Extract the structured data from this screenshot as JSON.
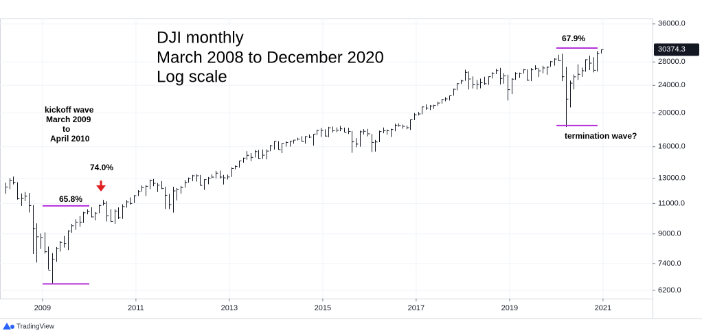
{
  "chart_data": {
    "type": "hlc",
    "title_lines": [
      "DJI monthly",
      "March 2008 to December 2020",
      "Log scale"
    ],
    "annotations": [
      "kickoff wave",
      "March 2009",
      "to",
      "April 2010",
      "65.8%",
      "74.0%",
      "67.9%",
      "termination wave?"
    ],
    "levels": [
      6470,
      10830,
      30700,
      18400
    ],
    "last_price": 30374.3,
    "log_scale": true,
    "grid": true,
    "color": "#131722",
    "level_color": "#b42fd8",
    "x": [
      "2008-03",
      "2008-04",
      "2008-05",
      "2008-06",
      "2008-07",
      "2008-08",
      "2008-09",
      "2008-10",
      "2008-11",
      "2008-12",
      "2009-01",
      "2009-02",
      "2009-03",
      "2009-04",
      "2009-05",
      "2009-06",
      "2009-07",
      "2009-08",
      "2009-09",
      "2009-10",
      "2009-11",
      "2009-12",
      "2010-01",
      "2010-02",
      "2010-03",
      "2010-04",
      "2010-05",
      "2010-06",
      "2010-07",
      "2010-08",
      "2010-09",
      "2010-10",
      "2010-11",
      "2010-12",
      "2011-01",
      "2011-02",
      "2011-03",
      "2011-04",
      "2011-05",
      "2011-06",
      "2011-07",
      "2011-08",
      "2011-09",
      "2011-10",
      "2011-11",
      "2011-12",
      "2012-01",
      "2012-02",
      "2012-03",
      "2012-04",
      "2012-05",
      "2012-06",
      "2012-07",
      "2012-08",
      "2012-09",
      "2012-10",
      "2012-11",
      "2012-12",
      "2013-01",
      "2013-02",
      "2013-03",
      "2013-04",
      "2013-05",
      "2013-06",
      "2013-07",
      "2013-08",
      "2013-09",
      "2013-10",
      "2013-11",
      "2013-12",
      "2014-01",
      "2014-02",
      "2014-03",
      "2014-04",
      "2014-05",
      "2014-06",
      "2014-07",
      "2014-08",
      "2014-09",
      "2014-10",
      "2014-11",
      "2014-12",
      "2015-01",
      "2015-02",
      "2015-03",
      "2015-04",
      "2015-05",
      "2015-06",
      "2015-07",
      "2015-08",
      "2015-09",
      "2015-10",
      "2015-11",
      "2015-12",
      "2016-01",
      "2016-02",
      "2016-03",
      "2016-04",
      "2016-05",
      "2016-06",
      "2016-07",
      "2016-08",
      "2016-09",
      "2016-10",
      "2016-11",
      "2016-12",
      "2017-01",
      "2017-02",
      "2017-03",
      "2017-04",
      "2017-05",
      "2017-06",
      "2017-07",
      "2017-08",
      "2017-09",
      "2017-10",
      "2017-11",
      "2017-12",
      "2018-01",
      "2018-02",
      "2018-03",
      "2018-04",
      "2018-05",
      "2018-06",
      "2018-07",
      "2018-08",
      "2018-09",
      "2018-10",
      "2018-11",
      "2018-12",
      "2019-01",
      "2019-02",
      "2019-03",
      "2019-04",
      "2019-05",
      "2019-06",
      "2019-07",
      "2019-08",
      "2019-09",
      "2019-10",
      "2019-11",
      "2019-12",
      "2020-01",
      "2020-02",
      "2020-03",
      "2020-04",
      "2020-05",
      "2020-06",
      "2020-07",
      "2020-08",
      "2020-09",
      "2020-10",
      "2020-11",
      "2020-12"
    ],
    "high": [
      12622,
      13010,
      13136,
      12657,
      11750,
      11867,
      11790,
      10882,
      9654,
      9026,
      9088,
      8280,
      7924,
      8258,
      8588,
      8877,
      9214,
      9620,
      9917,
      10119,
      10406,
      10580,
      10729,
      10404,
      10907,
      11258,
      11157,
      10595,
      10581,
      10720,
      10948,
      11246,
      11451,
      11625,
      12020,
      12391,
      12419,
      12876,
      12929,
      12600,
      12753,
      12284,
      11717,
      12284,
      12187,
      12360,
      12842,
      13055,
      13289,
      13338,
      13279,
      12898,
      13103,
      13330,
      13653,
      13661,
      13290,
      13307,
      13969,
      14150,
      14585,
      14888,
      15542,
      15340,
      15658,
      15658,
      15710,
      15721,
      16174,
      16588,
      16588,
      16398,
      16589,
      16631,
      16736,
      16978,
      17151,
      17153,
      17350,
      17395,
      17895,
      18103,
      17951,
      18244,
      18288,
      18175,
      18351,
      18150,
      18137,
      17750,
      16933,
      17800,
      17977,
      17997,
      17405,
      16740,
      17790,
      18167,
      17935,
      18017,
      18622,
      18668,
      18534,
      18399,
      19152,
      19987,
      20126,
      20851,
      21169,
      21070,
      21113,
      21535,
      21929,
      22179,
      22420,
      23485,
      24327,
      24876,
      26617,
      26307,
      25449,
      24858,
      25087,
      25403,
      25462,
      26168,
      26770,
      26952,
      25980,
      25750,
      25140,
      26156,
      26110,
      26696,
      26667,
      26908,
      27399,
      26878,
      27307,
      27183,
      28175,
      28702,
      29374,
      29568,
      27102,
      24765,
      25759,
      27580,
      26991,
      28502,
      29199,
      28902,
      30118,
      30400
    ],
    "low": [
      11731,
      12102,
      12480,
      11287,
      10827,
      11175,
      10365,
      7882,
      7449,
      8149,
      7909,
      7114,
      6470,
      7487,
      8012,
      8221,
      8087,
      9065,
      9253,
      9430,
      9678,
      10236,
      10030,
      9835,
      10320,
      10856,
      9774,
      9741,
      9614,
      9936,
      9940,
      10704,
      10929,
      11036,
      11555,
      11894,
      11555,
      12093,
      12332,
      11863,
      12093,
      10604,
      10597,
      10362,
      11231,
      11735,
      12217,
      12627,
      12747,
      12710,
      12391,
      12035,
      12492,
      12994,
      12978,
      12970,
      12471,
      12883,
      13104,
      13784,
      13937,
      14398,
      14688,
      14551,
      14910,
      14760,
      14760,
      14720,
      15532,
      15703,
      15699,
      15340,
      16015,
      16015,
      16334,
      16682,
      16563,
      16333,
      16945,
      16118,
      17276,
      17068,
      17138,
      17038,
      17585,
      17603,
      17723,
      17596,
      17399,
      15370,
      15942,
      16013,
      17353,
      17138,
      15451,
      15504,
      16498,
      17484,
      17331,
      17063,
      17713,
      18266,
      18022,
      17959,
      17884,
      19069,
      19677,
      19831,
      20413,
      20379,
      20554,
      20994,
      21279,
      21600,
      21709,
      22416,
      23242,
      24242,
      24741,
      23360,
      23509,
      23344,
      23531,
      24078,
      24077,
      25124,
      25836,
      24123,
      24268,
      21713,
      22639,
      24883,
      25208,
      25944,
      24780,
      24680,
      26559,
      25339,
      25979,
      25743,
      27125,
      27326,
      28170,
      24681,
      18214,
      20735,
      23361,
      24844,
      25391,
      26248,
      26537,
      26143,
      26277,
      29640
    ],
    "close": [
      12263,
      12820,
      12638,
      11350,
      11378,
      11544,
      10851,
      9325,
      8829,
      8776,
      8001,
      7063,
      7609,
      8168,
      8500,
      8447,
      9172,
      9496,
      9712,
      9713,
      10345,
      10428,
      10067,
      10325,
      10857,
      11009,
      10137,
      9774,
      10466,
      10015,
      10788,
      11118,
      11006,
      11578,
      11892,
      12226,
      12320,
      12811,
      12570,
      12414,
      12143,
      11614,
      10913,
      11955,
      12046,
      12218,
      12633,
      12952,
      13212,
      13214,
      12393,
      12880,
      13009,
      13091,
      13437,
      13096,
      13026,
      13104,
      13861,
      14054,
      14579,
      14840,
      15116,
      14910,
      15500,
      14810,
      15130,
      15546,
      16086,
      16577,
      15699,
      16322,
      16458,
      16581,
      16717,
      16827,
      16563,
      17098,
      17043,
      17391,
      17828,
      17823,
      17165,
      18133,
      17776,
      17841,
      18011,
      17620,
      17690,
      16528,
      16285,
      17664,
      17720,
      17425,
      16466,
      16517,
      17685,
      17774,
      17787,
      17930,
      18432,
      18401,
      18308,
      18142,
      19124,
      19763,
      19864,
      20812,
      20663,
      20940,
      21009,
      21350,
      21891,
      21948,
      22405,
      23377,
      24272,
      24719,
      26149,
      25029,
      24103,
      24163,
      24416,
      24271,
      25415,
      25965,
      26458,
      25116,
      25538,
      23327,
      24999,
      25916,
      25929,
      26593,
      24815,
      26600,
      26864,
      26403,
      26917,
      27046,
      28051,
      28538,
      28256,
      25409,
      21917,
      24346,
      25383,
      25813,
      26428,
      28430,
      27782,
      26502,
      29639,
      30374.3
    ],
    "xlim": [
      2008.09,
      2022.06
    ],
    "xticks": [
      2009,
      2011,
      2013,
      2015,
      2017,
      2019,
      2021
    ],
    "ylim": [
      5870,
      37300
    ],
    "yticks": [
      {
        "value": 6200,
        "label": "6200.0"
      },
      {
        "value": 7400,
        "label": "7400.0"
      },
      {
        "value": 9000,
        "label": "9000.0"
      },
      {
        "value": 11000,
        "label": "11000.0"
      },
      {
        "value": 13000,
        "label": "13000.0"
      },
      {
        "value": 16000,
        "label": "16000.0"
      },
      {
        "value": 20000,
        "label": "20000.0"
      },
      {
        "value": 24000,
        "label": "24000.0"
      },
      {
        "value": 28000,
        "label": "28000.0"
      },
      {
        "value": 36000,
        "label": "36000.0"
      }
    ],
    "branding": "TradingView"
  }
}
